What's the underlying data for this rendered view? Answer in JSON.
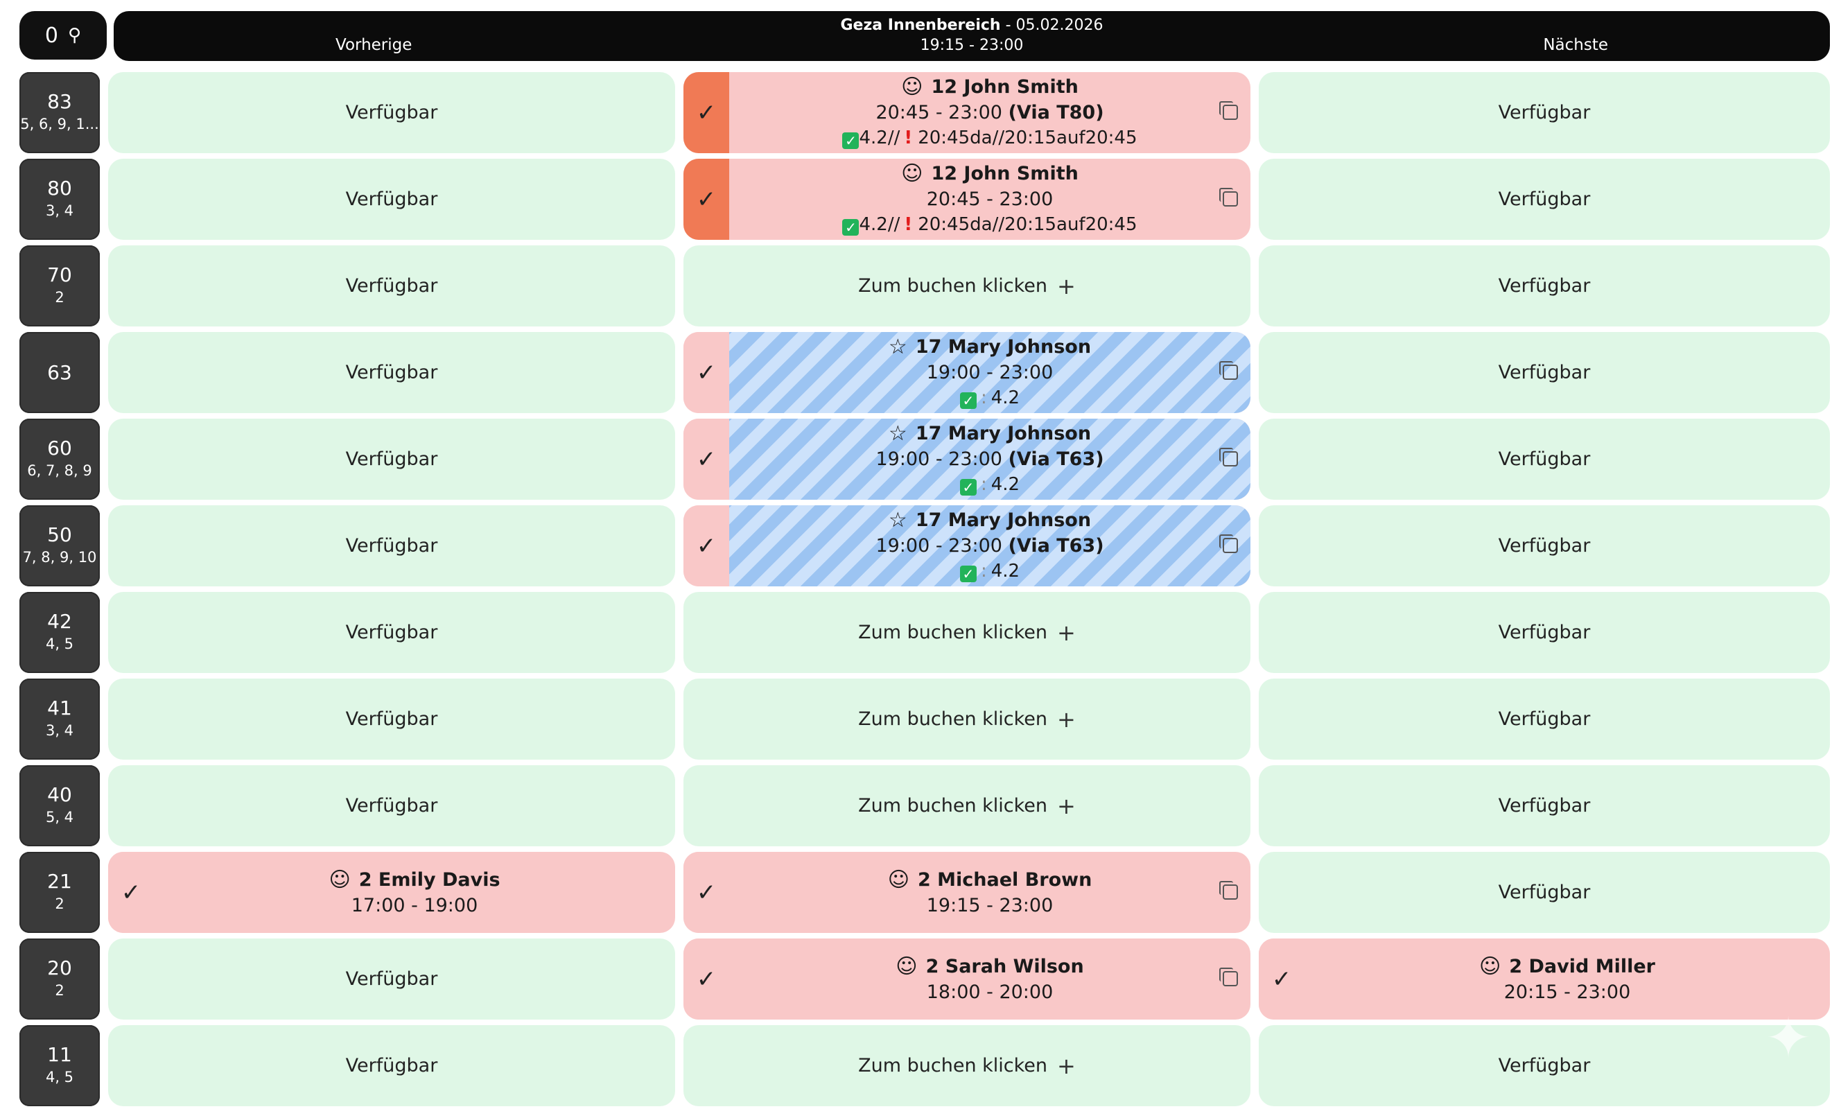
{
  "header": {
    "counter": "0",
    "counter_icon": "search-people-icon",
    "prev_label": "Vorherige",
    "next_label": "Nächste",
    "area": "Geza Innenbereich",
    "separator": "-",
    "date": "05.02.2026",
    "time_range": "19:15 - 23:00"
  },
  "labels": {
    "free": "Verfügbar",
    "click_to_book": "Zum buchen klicken",
    "plus": "+"
  },
  "tables": [
    {
      "number": "83",
      "seats": "5, 6, 9, 1..."
    },
    {
      "number": "80",
      "seats": "3, 4"
    },
    {
      "number": "70",
      "seats": "2"
    },
    {
      "number": "63",
      "seats": ""
    },
    {
      "number": "60",
      "seats": "6, 7, 8, 9"
    },
    {
      "number": "50",
      "seats": "7, 8, 9, 10"
    },
    {
      "number": "42",
      "seats": "4, 5"
    },
    {
      "number": "41",
      "seats": "3, 4"
    },
    {
      "number": "40",
      "seats": "5, 4"
    },
    {
      "number": "21",
      "seats": "2"
    },
    {
      "number": "20",
      "seats": "2"
    },
    {
      "number": "11",
      "seats": "4, 5"
    }
  ],
  "bookings": {
    "r83": {
      "guests_name": "12 John Smith",
      "time": "20:45 - 23:00",
      "via": "(Via T80)",
      "note_a": "4.2//",
      "note_b": "20:45da//20:15auf20:45"
    },
    "r80": {
      "guests_name": "12 John Smith",
      "time": "20:45 - 23:00",
      "via": "",
      "note_a": "4.2//",
      "note_b": "20:45da//20:15auf20:45"
    },
    "r63": {
      "guests_name": "17 Mary Johnson",
      "time": "19:00 - 23:00",
      "via": "",
      "note": "4.2"
    },
    "r60": {
      "guests_name": "17 Mary Johnson",
      "time": "19:00 - 23:00",
      "via": "(Via T63)",
      "note": "4.2"
    },
    "r50": {
      "guests_name": "17 Mary Johnson",
      "time": "19:00 - 23:00",
      "via": "(Via T63)",
      "note": "4.2"
    },
    "r21_prev": {
      "guests_name": "2 Emily Davis",
      "time": "17:00 - 19:00"
    },
    "r21": {
      "guests_name": "2 Michael Brown",
      "time": "19:15 - 23:00"
    },
    "r20": {
      "guests_name": "2 Sarah Wilson",
      "time": "18:00 - 20:00"
    },
    "r20_next": {
      "guests_name": "2 David Miller",
      "time": "20:15 - 23:00"
    }
  },
  "colors": {
    "free": "#dff7e6",
    "booked": "#f9c8c8",
    "confirmed_strip": "#f07a55",
    "vip_stripe": "#9cc4f2",
    "header": "#0b0b0b"
  }
}
